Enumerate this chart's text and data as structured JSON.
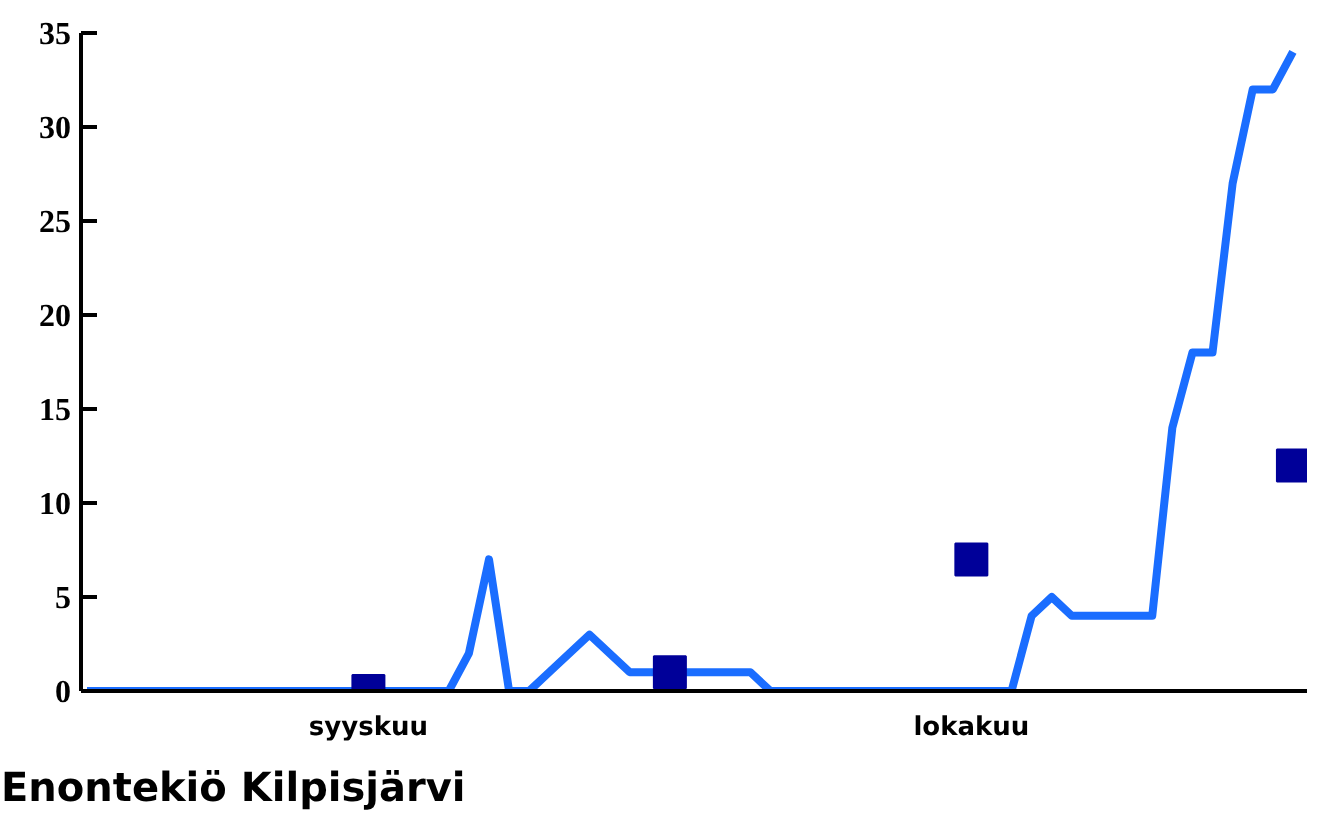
{
  "chart_data": {
    "type": "line",
    "title": "Enontekiö Kilpisjärvi",
    "categories": [
      null,
      null,
      null,
      null,
      null,
      null,
      null,
      null,
      null,
      null,
      null,
      null,
      null,
      null,
      "syyskuu",
      null,
      null,
      null,
      null,
      null,
      null,
      null,
      null,
      null,
      null,
      null,
      null,
      null,
      null,
      null,
      null,
      null,
      null,
      null,
      null,
      null,
      null,
      null,
      null,
      null,
      null,
      null,
      null,
      null,
      "lokakuu",
      null,
      null,
      null,
      null,
      null,
      null,
      null,
      null,
      null,
      null,
      null,
      null,
      null,
      null,
      null,
      null
    ],
    "ylim": [
      0,
      35
    ],
    "yticks": [
      0,
      5,
      10,
      15,
      20,
      25,
      30,
      35
    ],
    "grid": false,
    "series": [
      {
        "color": "#1a6dff",
        "line_style": "solid",
        "values": [
          0,
          0,
          0,
          0,
          0,
          0,
          0,
          0,
          0,
          0,
          0,
          0,
          0,
          0,
          0,
          0,
          0,
          0,
          0,
          2,
          7,
          0,
          0,
          1,
          2,
          3,
          2,
          1,
          1,
          1,
          1,
          1,
          1,
          1,
          0,
          0,
          0,
          0,
          0,
          0,
          0,
          0,
          0,
          0,
          0,
          0,
          0,
          4,
          5,
          4,
          4,
          4,
          4,
          4,
          14,
          18,
          18,
          27,
          32,
          32,
          34
        ]
      },
      {
        "type": "scatter",
        "color": "#000099",
        "marker": "square",
        "values": [
          null,
          null,
          null,
          null,
          null,
          null,
          null,
          null,
          null,
          null,
          null,
          null,
          null,
          null,
          0,
          null,
          null,
          null,
          null,
          null,
          null,
          null,
          null,
          null,
          null,
          null,
          null,
          null,
          null,
          1,
          null,
          null,
          null,
          null,
          null,
          null,
          null,
          null,
          null,
          null,
          null,
          null,
          null,
          null,
          7,
          null,
          null,
          null,
          null,
          null,
          null,
          null,
          null,
          null,
          null,
          null,
          null,
          null,
          null,
          null,
          12
        ]
      }
    ]
  }
}
